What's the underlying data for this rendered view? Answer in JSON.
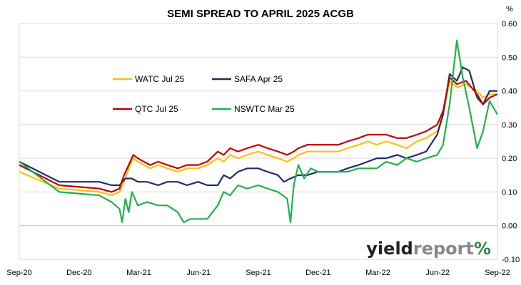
{
  "chart_data": {
    "type": "line",
    "title": "SEMI SPREAD TO APRIL 2025 ACGB",
    "y_unit": "%",
    "xlabel": "",
    "ylabel": "",
    "x_ticks": [
      "Sep-20",
      "Dec-20",
      "Mar-21",
      "Jun-21",
      "Sep-21",
      "Dec-21",
      "Mar-22",
      "Jun-22",
      "Sep-22"
    ],
    "x_range": [
      "2020-09-01",
      "2022-09-01"
    ],
    "ylim": [
      -0.1,
      0.6
    ],
    "y_ticks": [
      "-0.10",
      "0.00",
      "0.10",
      "0.20",
      "0.30",
      "0.40",
      "0.50",
      "0.60"
    ],
    "grid": "horizontal",
    "legend_position": "upper-left inside plot",
    "series": [
      {
        "name": "WATC Jul 25",
        "color": "#FFC000",
        "points": [
          [
            "2020-09-01",
            0.16
          ],
          [
            "2020-11-01",
            0.11
          ],
          [
            "2021-01-01",
            0.1
          ],
          [
            "2021-01-20",
            0.09
          ],
          [
            "2021-02-01",
            0.1
          ],
          [
            "2021-02-08",
            0.13
          ],
          [
            "2021-02-15",
            0.17
          ],
          [
            "2021-02-22",
            0.2
          ],
          [
            "2021-03-01",
            0.19
          ],
          [
            "2021-03-10",
            0.18
          ],
          [
            "2021-03-20",
            0.17
          ],
          [
            "2021-04-01",
            0.18
          ],
          [
            "2021-04-15",
            0.17
          ],
          [
            "2021-05-01",
            0.16
          ],
          [
            "2021-05-15",
            0.17
          ],
          [
            "2021-06-01",
            0.17
          ],
          [
            "2021-06-15",
            0.18
          ],
          [
            "2021-07-01",
            0.2
          ],
          [
            "2021-07-10",
            0.19
          ],
          [
            "2021-07-20",
            0.21
          ],
          [
            "2021-08-01",
            0.2
          ],
          [
            "2021-08-15",
            0.21
          ],
          [
            "2021-09-01",
            0.22
          ],
          [
            "2021-09-15",
            0.21
          ],
          [
            "2021-10-01",
            0.2
          ],
          [
            "2021-10-15",
            0.19
          ],
          [
            "2021-10-25",
            0.2
          ],
          [
            "2021-11-01",
            0.21
          ],
          [
            "2021-11-15",
            0.22
          ],
          [
            "2021-12-01",
            0.22
          ],
          [
            "2021-12-15",
            0.22
          ],
          [
            "2022-01-01",
            0.22
          ],
          [
            "2022-01-15",
            0.23
          ],
          [
            "2022-02-01",
            0.24
          ],
          [
            "2022-02-15",
            0.25
          ],
          [
            "2022-03-01",
            0.24
          ],
          [
            "2022-03-15",
            0.25
          ],
          [
            "2022-04-01",
            0.24
          ],
          [
            "2022-04-15",
            0.23
          ],
          [
            "2022-05-01",
            0.25
          ],
          [
            "2022-05-15",
            0.26
          ],
          [
            "2022-06-01",
            0.28
          ],
          [
            "2022-06-10",
            0.33
          ],
          [
            "2022-06-20",
            0.43
          ],
          [
            "2022-07-01",
            0.41
          ],
          [
            "2022-07-15",
            0.42
          ],
          [
            "2022-08-01",
            0.4
          ],
          [
            "2022-08-10",
            0.38
          ],
          [
            "2022-08-20",
            0.39
          ],
          [
            "2022-09-01",
            0.39
          ]
        ]
      },
      {
        "name": "SAFA Apr 25",
        "color": "#1F2D6B",
        "points": [
          [
            "2020-09-01",
            0.19
          ],
          [
            "2020-11-01",
            0.13
          ],
          [
            "2021-01-01",
            0.13
          ],
          [
            "2021-01-20",
            0.12
          ],
          [
            "2021-02-01",
            0.12
          ],
          [
            "2021-02-10",
            0.14
          ],
          [
            "2021-02-20",
            0.14
          ],
          [
            "2021-03-01",
            0.13
          ],
          [
            "2021-03-15",
            0.13
          ],
          [
            "2021-04-01",
            0.12
          ],
          [
            "2021-04-15",
            0.13
          ],
          [
            "2021-05-01",
            0.13
          ],
          [
            "2021-05-15",
            0.12
          ],
          [
            "2021-06-01",
            0.13
          ],
          [
            "2021-06-15",
            0.12
          ],
          [
            "2021-07-01",
            0.12
          ],
          [
            "2021-07-10",
            0.15
          ],
          [
            "2021-07-20",
            0.14
          ],
          [
            "2021-08-01",
            0.16
          ],
          [
            "2021-08-15",
            0.17
          ],
          [
            "2021-09-01",
            0.17
          ],
          [
            "2021-09-15",
            0.16
          ],
          [
            "2021-10-01",
            0.15
          ],
          [
            "2021-10-10",
            0.13
          ],
          [
            "2021-10-20",
            0.14
          ],
          [
            "2021-11-01",
            0.15
          ],
          [
            "2021-11-15",
            0.15
          ],
          [
            "2021-12-01",
            0.16
          ],
          [
            "2021-12-15",
            0.16
          ],
          [
            "2022-01-01",
            0.16
          ],
          [
            "2022-01-15",
            0.17
          ],
          [
            "2022-02-01",
            0.18
          ],
          [
            "2022-02-15",
            0.19
          ],
          [
            "2022-03-01",
            0.2
          ],
          [
            "2022-03-15",
            0.2
          ],
          [
            "2022-04-01",
            0.21
          ],
          [
            "2022-04-15",
            0.2
          ],
          [
            "2022-05-01",
            0.21
          ],
          [
            "2022-05-15",
            0.22
          ],
          [
            "2022-06-01",
            0.27
          ],
          [
            "2022-06-10",
            0.33
          ],
          [
            "2022-06-20",
            0.45
          ],
          [
            "2022-07-01",
            0.43
          ],
          [
            "2022-07-10",
            0.47
          ],
          [
            "2022-07-20",
            0.46
          ],
          [
            "2022-08-01",
            0.38
          ],
          [
            "2022-08-10",
            0.36
          ],
          [
            "2022-08-20",
            0.4
          ],
          [
            "2022-09-01",
            0.4
          ]
        ]
      },
      {
        "name": "QTC Jul 25",
        "color": "#C00000",
        "points": [
          [
            "2020-09-01",
            0.18
          ],
          [
            "2020-11-01",
            0.12
          ],
          [
            "2021-01-01",
            0.11
          ],
          [
            "2021-01-20",
            0.1
          ],
          [
            "2021-02-01",
            0.11
          ],
          [
            "2021-02-08",
            0.15
          ],
          [
            "2021-02-15",
            0.18
          ],
          [
            "2021-02-22",
            0.21
          ],
          [
            "2021-03-01",
            0.2
          ],
          [
            "2021-03-10",
            0.19
          ],
          [
            "2021-03-20",
            0.18
          ],
          [
            "2021-04-01",
            0.19
          ],
          [
            "2021-04-15",
            0.18
          ],
          [
            "2021-05-01",
            0.17
          ],
          [
            "2021-05-15",
            0.18
          ],
          [
            "2021-06-01",
            0.18
          ],
          [
            "2021-06-15",
            0.19
          ],
          [
            "2021-07-01",
            0.22
          ],
          [
            "2021-07-10",
            0.21
          ],
          [
            "2021-07-20",
            0.23
          ],
          [
            "2021-08-01",
            0.22
          ],
          [
            "2021-08-15",
            0.23
          ],
          [
            "2021-09-01",
            0.24
          ],
          [
            "2021-09-15",
            0.23
          ],
          [
            "2021-10-01",
            0.22
          ],
          [
            "2021-10-15",
            0.21
          ],
          [
            "2021-10-25",
            0.22
          ],
          [
            "2021-11-01",
            0.23
          ],
          [
            "2021-11-15",
            0.24
          ],
          [
            "2021-12-01",
            0.24
          ],
          [
            "2021-12-15",
            0.24
          ],
          [
            "2022-01-01",
            0.24
          ],
          [
            "2022-01-15",
            0.25
          ],
          [
            "2022-02-01",
            0.26
          ],
          [
            "2022-02-15",
            0.27
          ],
          [
            "2022-03-01",
            0.27
          ],
          [
            "2022-03-15",
            0.27
          ],
          [
            "2022-04-01",
            0.26
          ],
          [
            "2022-04-15",
            0.26
          ],
          [
            "2022-05-01",
            0.27
          ],
          [
            "2022-05-15",
            0.28
          ],
          [
            "2022-06-01",
            0.3
          ],
          [
            "2022-06-10",
            0.34
          ],
          [
            "2022-06-20",
            0.44
          ],
          [
            "2022-07-01",
            0.42
          ],
          [
            "2022-07-15",
            0.43
          ],
          [
            "2022-08-01",
            0.39
          ],
          [
            "2022-08-10",
            0.36
          ],
          [
            "2022-08-20",
            0.38
          ],
          [
            "2022-09-01",
            0.39
          ]
        ]
      },
      {
        "name": "NSWTC Mar 25",
        "color": "#22B14C",
        "points": [
          [
            "2020-09-01",
            0.19
          ],
          [
            "2020-11-01",
            0.1
          ],
          [
            "2021-01-01",
            0.09
          ],
          [
            "2021-01-20",
            0.07
          ],
          [
            "2021-02-01",
            0.05
          ],
          [
            "2021-02-05",
            0.01
          ],
          [
            "2021-02-10",
            0.08
          ],
          [
            "2021-02-15",
            0.04
          ],
          [
            "2021-02-20",
            0.1
          ],
          [
            "2021-03-01",
            0.06
          ],
          [
            "2021-03-15",
            0.07
          ],
          [
            "2021-04-01",
            0.06
          ],
          [
            "2021-04-15",
            0.06
          ],
          [
            "2021-05-01",
            0.04
          ],
          [
            "2021-05-10",
            0.01
          ],
          [
            "2021-05-20",
            0.02
          ],
          [
            "2021-06-01",
            0.02
          ],
          [
            "2021-06-15",
            0.02
          ],
          [
            "2021-07-01",
            0.06
          ],
          [
            "2021-07-10",
            0.1
          ],
          [
            "2021-07-20",
            0.09
          ],
          [
            "2021-08-01",
            0.12
          ],
          [
            "2021-08-15",
            0.11
          ],
          [
            "2021-09-01",
            0.12
          ],
          [
            "2021-09-15",
            0.11
          ],
          [
            "2021-10-01",
            0.1
          ],
          [
            "2021-10-15",
            0.08
          ],
          [
            "2021-10-20",
            0.01
          ],
          [
            "2021-10-25",
            0.12
          ],
          [
            "2021-11-01",
            0.18
          ],
          [
            "2021-11-10",
            0.14
          ],
          [
            "2021-11-20",
            0.17
          ],
          [
            "2021-12-01",
            0.16
          ],
          [
            "2021-12-15",
            0.16
          ],
          [
            "2022-01-01",
            0.16
          ],
          [
            "2022-01-15",
            0.16
          ],
          [
            "2022-02-01",
            0.17
          ],
          [
            "2022-02-15",
            0.17
          ],
          [
            "2022-03-01",
            0.17
          ],
          [
            "2022-03-15",
            0.19
          ],
          [
            "2022-04-01",
            0.18
          ],
          [
            "2022-04-15",
            0.2
          ],
          [
            "2022-05-01",
            0.19
          ],
          [
            "2022-05-15",
            0.2
          ],
          [
            "2022-06-01",
            0.21
          ],
          [
            "2022-06-10",
            0.24
          ],
          [
            "2022-06-20",
            0.36
          ],
          [
            "2022-07-01",
            0.55
          ],
          [
            "2022-07-10",
            0.44
          ],
          [
            "2022-07-20",
            0.35
          ],
          [
            "2022-08-01",
            0.23
          ],
          [
            "2022-08-10",
            0.28
          ],
          [
            "2022-08-20",
            0.37
          ],
          [
            "2022-09-01",
            0.33
          ]
        ]
      }
    ]
  },
  "branding": {
    "text_dark": "yield",
    "text_light": "report",
    "symbol": "%",
    "dark_color": "#222222",
    "light_color": "#888888"
  }
}
